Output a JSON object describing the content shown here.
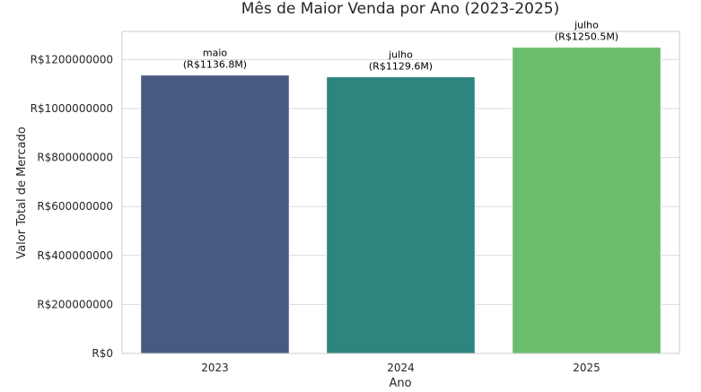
{
  "chart_data": {
    "type": "bar",
    "title": "Mês de Maior Venda por Ano (2023-2025)",
    "xlabel": "Ano",
    "ylabel": "Valor Total de Mercado",
    "categories": [
      "2023",
      "2024",
      "2025"
    ],
    "values": [
      1136800000,
      1129600000,
      1250500000
    ],
    "bar_labels": [
      {
        "month": "maio",
        "value": "(R$1136.8M)"
      },
      {
        "month": "julho",
        "value": "(R$1129.6M)"
      },
      {
        "month": "julho",
        "value": "(R$1250.5M)"
      }
    ],
    "colors": [
      "#475a82",
      "#2e847f",
      "#6bbd6d"
    ],
    "ylim": [
      0,
      1315000000
    ],
    "yticks": [
      0,
      200000000,
      400000000,
      600000000,
      800000000,
      1000000000,
      1200000000
    ],
    "ytick_labels": [
      "R$0",
      "R$200000000",
      "R$400000000",
      "R$600000000",
      "R$800000000",
      "R$1000000000",
      "R$1200000000"
    ],
    "grid": "horizontal",
    "legend": "none"
  }
}
